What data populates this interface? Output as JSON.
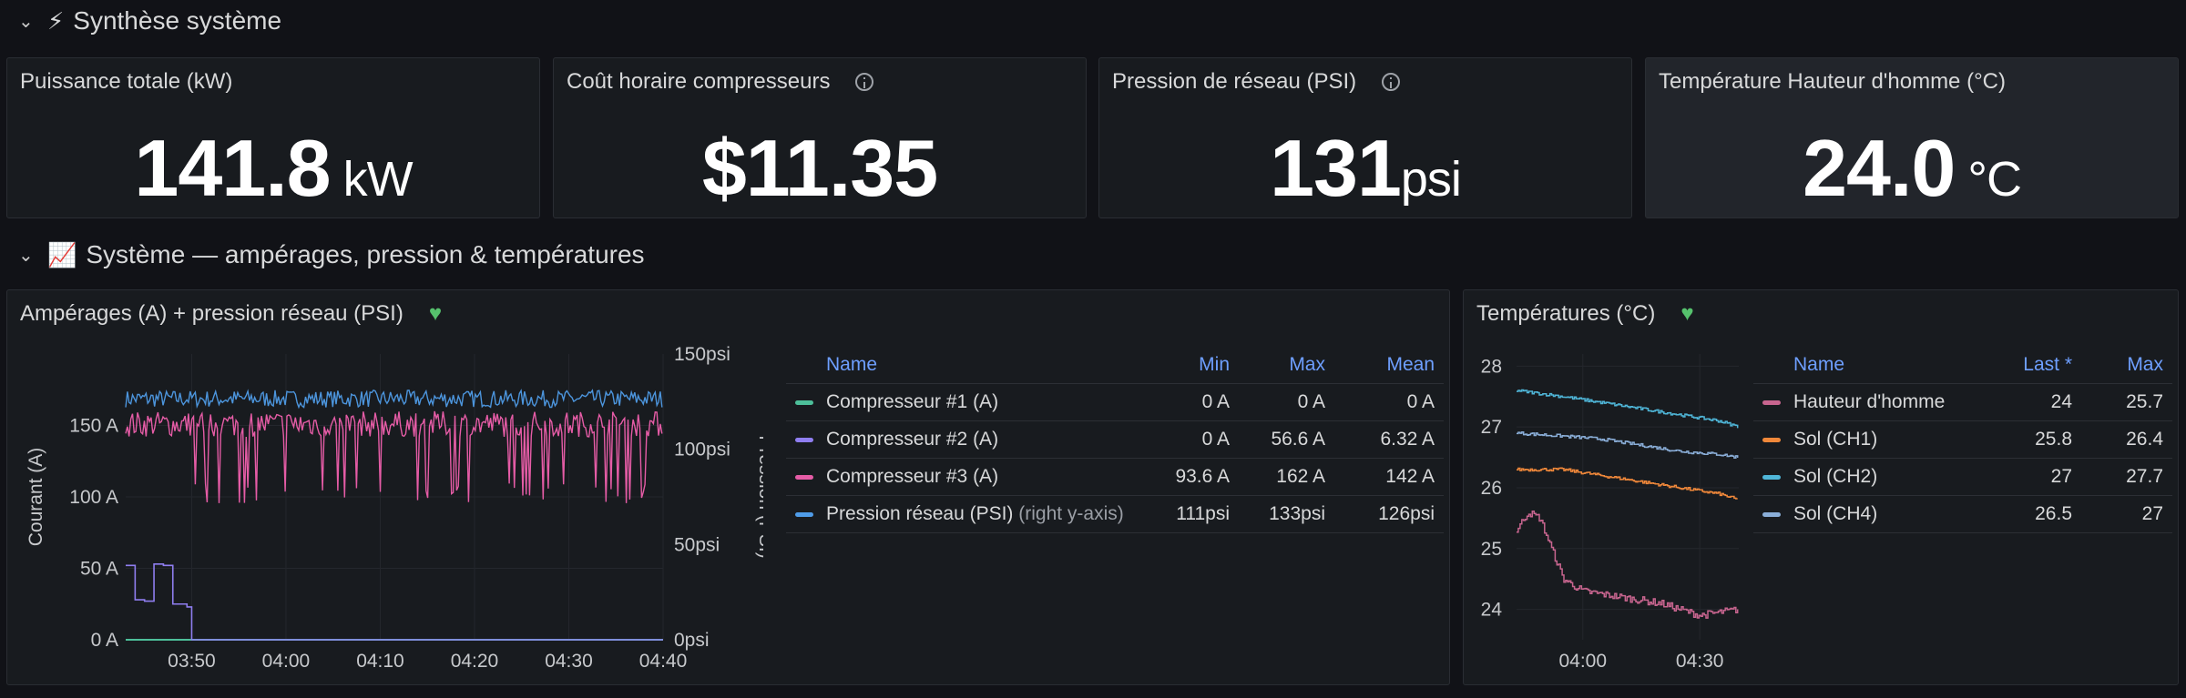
{
  "rows": [
    {
      "title": "Synthèse système",
      "icon": "lightning-icon",
      "emoji": "⚡"
    },
    {
      "title": "Système — ampérages, pression & températures",
      "icon": "chart-increasing-icon",
      "emoji": "📈"
    }
  ],
  "stats": [
    {
      "title": "Puissance totale (kW)",
      "value": "141.8",
      "unit": "kW",
      "info": false
    },
    {
      "title": "Coût horaire compresseurs",
      "value": "$11.35",
      "unit": "",
      "info": true
    },
    {
      "title": "Pression de réseau (PSI)",
      "value": "131",
      "unit": "psi",
      "info": true
    },
    {
      "title": "Température Hauteur d'homme (°C)",
      "value": "24.0",
      "unit": "°C",
      "info": false
    }
  ],
  "amps_panel": {
    "title": "Ampérages (A) + pression réseau (PSI)",
    "legend_headers": {
      "name": "Name",
      "min": "Min",
      "max": "Max",
      "mean": "Mean"
    },
    "legend_rows": [
      {
        "name": "Compresseur #1 (A)",
        "suffix": "",
        "min": "0 A",
        "max": "0 A",
        "mean": "0 A",
        "color": "#4dbf9a"
      },
      {
        "name": "Compresseur #2 (A)",
        "suffix": "",
        "min": "0 A",
        "max": "56.6 A",
        "mean": "6.32 A",
        "color": "#8f7ef0"
      },
      {
        "name": "Compresseur #3 (A)",
        "suffix": "",
        "min": "93.6 A",
        "max": "162 A",
        "mean": "142 A",
        "color": "#e55ca6"
      },
      {
        "name": "Pression réseau (PSI)",
        "suffix": "(right y-axis)",
        "min": "111psi",
        "max": "133psi",
        "mean": "126psi",
        "color": "#4f9ce8"
      }
    ]
  },
  "temps_panel": {
    "title": "Températures (°C)",
    "legend_headers": {
      "name": "Name",
      "last": "Last *",
      "max": "Max"
    },
    "legend_rows": [
      {
        "name": "Hauteur d'homme",
        "last": "24",
        "max": "25.7",
        "color": "#c8658f"
      },
      {
        "name": "Sol (CH1)",
        "last": "25.8",
        "max": "26.4",
        "color": "#f0883a"
      },
      {
        "name": "Sol (CH2)",
        "last": "27",
        "max": "27.7",
        "color": "#4fb6d8"
      },
      {
        "name": "Sol (CH4)",
        "last": "26.5",
        "max": "27",
        "color": "#8aaed8"
      }
    ]
  },
  "chart_data": [
    {
      "type": "line",
      "ylabel": "Courant (A)",
      "y2label": "Pression (PSI)",
      "x_ticks": [
        "03:50",
        "04:00",
        "04:10",
        "04:20",
        "04:30",
        "04:40"
      ],
      "y_ticks": [
        "0 A",
        "50 A",
        "100 A",
        "150 A"
      ],
      "y2_ticks": [
        "0psi",
        "50psi",
        "100psi",
        "150psi"
      ],
      "ylim": [
        0,
        200
      ],
      "y2lim": [
        0,
        150
      ],
      "x_range_minutes": [
        "03:43",
        "04:40"
      ],
      "series": [
        {
          "name": "Compresseur #1 (A)",
          "axis": "left",
          "approx_values": [
            0,
            0,
            0,
            0,
            0,
            0,
            0
          ],
          "x": [
            "03:43",
            "03:50",
            "04:00",
            "04:10",
            "04:20",
            "04:30",
            "04:40"
          ]
        },
        {
          "name": "Compresseur #2 (A)",
          "axis": "left",
          "x": [
            "03:43",
            "03:44",
            "03:45",
            "03:46",
            "03:47",
            "03:48",
            "03:49",
            "03:49.5",
            "03:50",
            "04:40"
          ],
          "approx_values": [
            52,
            28,
            27,
            53,
            52,
            25,
            25,
            23,
            0,
            0
          ]
        },
        {
          "name": "Compresseur #3 (A)",
          "axis": "left",
          "range": [
            93.6,
            162
          ],
          "mean": 142,
          "approx_values": [
            150,
            145,
            155,
            110,
            150,
            100,
            155
          ]
        },
        {
          "name": "Pression réseau (PSI)",
          "axis": "right",
          "range": [
            111,
            133
          ],
          "mean": 126
        }
      ]
    },
    {
      "type": "line",
      "x_ticks": [
        "04:00",
        "04:30"
      ],
      "y_ticks": [
        "24",
        "25",
        "26",
        "27",
        "28"
      ],
      "ylim": [
        23.5,
        28.2
      ],
      "series": [
        {
          "name": "Hauteur d'homme",
          "x": [
            "03:43",
            "03:46",
            "03:49",
            "03:52",
            "03:55",
            "04:00",
            "04:10",
            "04:20",
            "04:30",
            "04:40"
          ],
          "approx_values": [
            25.3,
            25.6,
            25.5,
            25.0,
            24.5,
            24.3,
            24.2,
            24.1,
            23.9,
            24.0
          ]
        },
        {
          "name": "Sol (CH1)",
          "x": [
            "03:43",
            "03:55",
            "04:05",
            "04:15",
            "04:25",
            "04:35",
            "04:40"
          ],
          "approx_values": [
            26.3,
            26.3,
            26.2,
            26.1,
            26.0,
            25.9,
            25.8
          ]
        },
        {
          "name": "Sol (CH2)",
          "x": [
            "03:43",
            "03:55",
            "04:05",
            "04:15",
            "04:25",
            "04:35",
            "04:40"
          ],
          "approx_values": [
            27.6,
            27.5,
            27.4,
            27.3,
            27.2,
            27.1,
            27.0
          ]
        },
        {
          "name": "Sol (CH4)",
          "x": [
            "03:43",
            "03:55",
            "04:05",
            "04:15",
            "04:25",
            "04:35",
            "04:40"
          ],
          "approx_values": [
            26.9,
            26.85,
            26.8,
            26.7,
            26.6,
            26.55,
            26.5
          ]
        }
      ]
    }
  ]
}
